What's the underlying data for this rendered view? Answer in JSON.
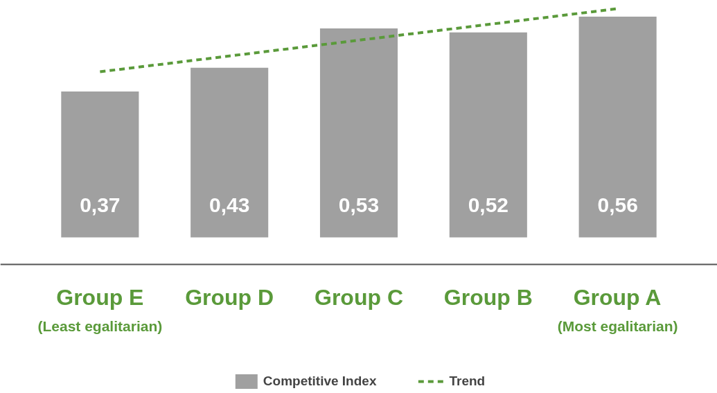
{
  "chart_data": {
    "type": "bar",
    "categories": [
      "Group E\n(Least egalitarian)",
      "Group D",
      "Group C",
      "Group B",
      "Group A\n(Most egalitarian)"
    ],
    "series": [
      {
        "name": "Competitive Index",
        "color": "#a0a0a0",
        "values": [
          0.37,
          0.43,
          0.53,
          0.52,
          0.56
        ],
        "value_labels": [
          "0,37",
          "0,43",
          "0,53",
          "0,52",
          "0,56"
        ]
      },
      {
        "name": "Trend",
        "type": "line",
        "color": "#5a9a3a",
        "line_style": "dashed",
        "values": [
          0.42,
          0.46,
          0.5,
          0.54,
          0.58
        ]
      }
    ],
    "legend": "bottom",
    "grid": false
  }
}
